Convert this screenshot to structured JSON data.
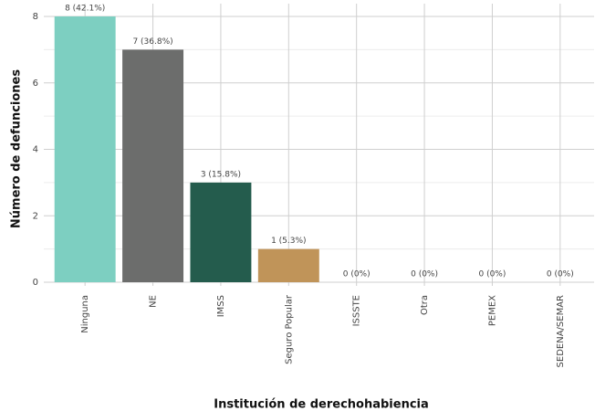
{
  "chart_data": {
    "type": "bar",
    "x_label": "Institución de derechohabiencia",
    "y_label": "Número de defunciones",
    "categories": [
      "Ninguna",
      "NE",
      "IMSS",
      "Seguro Popular",
      "ISSSTE",
      "Otra",
      "PEMEX",
      "SEDENA/SEMAR"
    ],
    "values": [
      8,
      7,
      3,
      1,
      0,
      0,
      0,
      0
    ],
    "value_labels": [
      "8 (42.1%)",
      "7 (36.8%)",
      "3 (15.8%)",
      "1 (5.3%)",
      "0 (0%)",
      "0 (0%)",
      "0 (0%)",
      "0 (0%)"
    ],
    "colors": [
      "#7dcfc1",
      "#6c6d6c",
      "#245c4d",
      "#c09459",
      "#999999",
      "#999999",
      "#999999",
      "#999999"
    ],
    "ylim": [
      0,
      8
    ],
    "yticks": [
      0,
      2,
      4,
      6,
      8
    ],
    "grid": true
  }
}
